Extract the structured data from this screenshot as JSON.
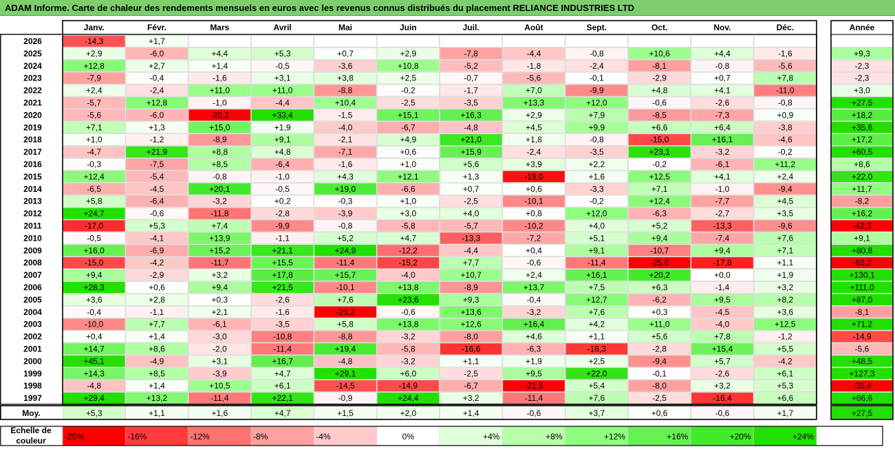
{
  "title": "ADAM Informe. Carte de chaleur des rendements mensuels en euros avec les revenus connus distribués du placement RELIANCE INDUSTRIES LTD",
  "chart_data": {
    "type": "heatmap",
    "months": [
      "Janv.",
      "Févr.",
      "Mars",
      "Avril",
      "Mai",
      "Juin",
      "Juil.",
      "Août",
      "Sept.",
      "Oct.",
      "Nov.",
      "Déc."
    ],
    "year_column_label": "Année",
    "average_row_label": "Moy.",
    "rows": [
      {
        "year": "2026",
        "values": [
          "-14,3",
          "+1,7",
          "",
          "",
          "",
          "",
          "",
          "",
          "",
          "",
          "",
          ""
        ],
        "annual": ""
      },
      {
        "year": "2025",
        "values": [
          "+2,9",
          "-6,0",
          "+4,4",
          "+5,3",
          "+0,7",
          "+2,9",
          "-7,8",
          "-4,4",
          "-0,8",
          "+10,6",
          "+4,4",
          "-1,6"
        ],
        "annual": "+9,3"
      },
      {
        "year": "2024",
        "values": [
          "+12,8",
          "+2,7",
          "+1,4",
          "-0,5",
          "-3,6",
          "+10,8",
          "-5,2",
          "-1,8",
          "-2,4",
          "-8,1",
          "-0,8",
          "-5,6"
        ],
        "annual": "-2,3"
      },
      {
        "year": "2023",
        "values": [
          "-7,9",
          "-0,4",
          "-1,6",
          "+3,1",
          "+3,8",
          "+2,5",
          "-0,7",
          "-5,6",
          "-0,1",
          "-2,9",
          "+0,7",
          "+7,8"
        ],
        "annual": "-2,3"
      },
      {
        "year": "2022",
        "values": [
          "+2,4",
          "-2,4",
          "+11,0",
          "+11,0",
          "-8,8",
          "-0,2",
          "-1,7",
          "+7,0",
          "-9,9",
          "+4,8",
          "+4,1",
          "-11,0"
        ],
        "annual": "+3,0"
      },
      {
        "year": "2021",
        "values": [
          "-5,7",
          "+12,8",
          "-1,0",
          "-4,4",
          "+10,4",
          "-2,5",
          "-3,5",
          "+13,3",
          "+12,0",
          "-0,6",
          "-2,6",
          "-0,8"
        ],
        "annual": "+27,5"
      },
      {
        "year": "2020",
        "values": [
          "-5,6",
          "-6,0",
          "-20,2",
          "+33,4",
          "-1,5",
          "+15,1",
          "+16,3",
          "+2,9",
          "+7,9",
          "-8,5",
          "-7,3",
          "+0,9"
        ],
        "annual": "+18,2"
      },
      {
        "year": "2019",
        "values": [
          "+7,1",
          "+1,3",
          "+15,0",
          "+1,9",
          "-4,0",
          "-6,7",
          "-4,8",
          "+4,5",
          "+9,9",
          "+6,6",
          "+6,4",
          "-3,8"
        ],
        "annual": "+35,6"
      },
      {
        "year": "2018",
        "values": [
          "+1,0",
          "-1,2",
          "-8,9",
          "+9,1",
          "-2,1",
          "+4,9",
          "+21,0",
          "+1,8",
          "-0,8",
          "-15,0",
          "+16,1",
          "-4,6"
        ],
        "annual": "+17,2"
      },
      {
        "year": "2017",
        "values": [
          "-4,7",
          "+21,9",
          "+8,8",
          "+4,8",
          "-7,1",
          "+0,6",
          "+15,9",
          "-2,4",
          "-3,5",
          "+23,1",
          "-3,2",
          "-0,2"
        ],
        "annual": "+60,5"
      },
      {
        "year": "2016",
        "values": [
          "-0,3",
          "-7,5",
          "+8,5",
          "-6,4",
          "-1,6",
          "+1,0",
          "+5,6",
          "+3,9",
          "+2,2",
          "-0,2",
          "-6,1",
          "+11,2"
        ],
        "annual": "+8,6"
      },
      {
        "year": "2015",
        "values": [
          "+12,4",
          "-5,4",
          "-0,8",
          "-1,0",
          "+4,3",
          "+12,1",
          "+1,3",
          "-19,0",
          "+1,6",
          "+12,5",
          "+4,1",
          "+2,4"
        ],
        "annual": "+22,0"
      },
      {
        "year": "2014",
        "values": [
          "-6,5",
          "-4,5",
          "+20,1",
          "-0,5",
          "+19,0",
          "-6,6",
          "+0,7",
          "+0,6",
          "-3,3",
          "+7,1",
          "-1,0",
          "-9,4"
        ],
        "annual": "+11,7"
      },
      {
        "year": "2013",
        "values": [
          "+5,8",
          "-6,4",
          "-3,2",
          "+0,2",
          "-0,3",
          "+1,0",
          "-2,5",
          "-10,1",
          "-0,2",
          "+12,4",
          "-7,7",
          "+4,5"
        ],
        "annual": "-8,2"
      },
      {
        "year": "2012",
        "values": [
          "+24,7",
          "-0,6",
          "-11,8",
          "-2,8",
          "-3,9",
          "+3,0",
          "+4,0",
          "+0,8",
          "+12,0",
          "-6,3",
          "-2,7",
          "+3,5"
        ],
        "annual": "+16,2"
      },
      {
        "year": "2011",
        "values": [
          "-17,0",
          "+5,3",
          "+7,4",
          "-9,9",
          "-0,8",
          "-5,8",
          "-5,7",
          "-10,2",
          "+4,0",
          "+5,2",
          "-13,3",
          "-9,6"
        ],
        "annual": "-42,3"
      },
      {
        "year": "2010",
        "values": [
          "-0,5",
          "-4,1",
          "+13,9",
          "-1,1",
          "+5,2",
          "+4,7",
          "-13,3",
          "-7,2",
          "+5,1",
          "+9,4",
          "-7,4",
          "+7,6"
        ],
        "annual": "+9,1"
      },
      {
        "year": "2009",
        "values": [
          "+16,0",
          "-6,9",
          "+15,2",
          "+21,1",
          "+24,9",
          "-12,2",
          "-4,4",
          "+0,4",
          "+9,1",
          "-10,7",
          "+9,4",
          "+7,1"
        ],
        "annual": "+80,8"
      },
      {
        "year": "2008",
        "values": [
          "-15,0",
          "-4,2",
          "-11,7",
          "+15,5",
          "-11,4",
          "-15,2",
          "+7,7",
          "-0,6",
          "-11,4",
          "-25,6",
          "-17,8",
          "+1,1"
        ],
        "annual": "-63,2"
      },
      {
        "year": "2007",
        "values": [
          "+9,4",
          "-2,9",
          "+3,2",
          "+17,8",
          "+15,7",
          "-4,0",
          "+10,7",
          "+2,4",
          "+16,1",
          "+20,2",
          "+0,0",
          "+1,9"
        ],
        "annual": "+130,1"
      },
      {
        "year": "2006",
        "values": [
          "+28,3",
          "+0,6",
          "+9,4",
          "+21,5",
          "-10,1",
          "+13,8",
          "-8,9",
          "+13,7",
          "+7,5",
          "+6,3",
          "-1,4",
          "+3,2"
        ],
        "annual": "+111,0"
      },
      {
        "year": "2005",
        "values": [
          "+3,6",
          "+2,8",
          "+0,3",
          "-2,6",
          "+7,6",
          "+23,6",
          "+9,3",
          "-0,4",
          "+12,7",
          "-6,2",
          "+9,5",
          "+8,2"
        ],
        "annual": "+87,0"
      },
      {
        "year": "2004",
        "values": [
          "-0,4",
          "-1,1",
          "+2,1",
          "-1,6",
          "-20,2",
          "-0,6",
          "+13,6",
          "-3,2",
          "+7,6",
          "+0,3",
          "-4,5",
          "+3,6"
        ],
        "annual": "-8,1"
      },
      {
        "year": "2003",
        "values": [
          "-10,0",
          "+7,7",
          "-6,1",
          "-3,5",
          "+5,8",
          "+13,8",
          "+12,6",
          "+16,4",
          "+4,2",
          "+11,0",
          "-4,0",
          "+12,5"
        ],
        "annual": "+71,2"
      },
      {
        "year": "2002",
        "values": [
          "+0,4",
          "+1,4",
          "-3,0",
          "-10,8",
          "-8,8",
          "-3,2",
          "-8,0",
          "+4,6",
          "+1,1",
          "+5,6",
          "+7,8",
          "-1,2"
        ],
        "annual": "-14,9"
      },
      {
        "year": "2001",
        "values": [
          "+14,7",
          "+8,6",
          "-2,0",
          "-11,4",
          "+19,4",
          "-5,8",
          "-16,6",
          "-6,3",
          "-16,3",
          "-2,8",
          "+15,4",
          "+5,5"
        ],
        "annual": "-5,6"
      },
      {
        "year": "2000",
        "values": [
          "+45,1",
          "-4,9",
          "+3,1",
          "+16,7",
          "-4,8",
          "-3,2",
          "+1,1",
          "+1,9",
          "+2,5",
          "-9,4",
          "+5,7",
          "-4,2"
        ],
        "annual": "+48,5"
      },
      {
        "year": "1999",
        "values": [
          "+14,3",
          "+8,5",
          "-3,9",
          "+4,7",
          "+29,1",
          "+6,0",
          "-2,5",
          "+9,5",
          "+22,0",
          "-0,1",
          "-2,6",
          "+6,1"
        ],
        "annual": "+127,3"
      },
      {
        "year": "1998",
        "values": [
          "-4,8",
          "+1,4",
          "+10,5",
          "+6,1",
          "-14,5",
          "-14,9",
          "-6,7",
          "-21,5",
          "+5,4",
          "-8,0",
          "+3,2",
          "+5,3"
        ],
        "annual": "-35,4"
      },
      {
        "year": "1997",
        "values": [
          "+29,4",
          "+13,2",
          "-11,4",
          "+22,1",
          "-0,9",
          "+24,4",
          "+3,2",
          "-11,4",
          "+7,6",
          "-2,5",
          "-16,4",
          "+6,6"
        ],
        "annual": "+66,6"
      }
    ],
    "average": {
      "values": [
        "+5,3",
        "+1,1",
        "+1,6",
        "+4,7",
        "+1,5",
        "+2,0",
        "+1,4",
        "-0,6",
        "+3,7",
        "+0,6",
        "-0,6",
        "+1,7"
      ],
      "annual": "+27,5"
    },
    "legend": {
      "label_line1": "Echelle de",
      "label_line2": "couleur",
      "entries": [
        {
          "label": "-20%",
          "color": "#ff0000"
        },
        {
          "label": "-16%",
          "color": "#ff3b3b"
        },
        {
          "label": "-12%",
          "color": "#ff7272"
        },
        {
          "label": "-8%",
          "color": "#ffa0a0"
        },
        {
          "label": "-4%",
          "color": "#ffcaca"
        },
        {
          "label": "0%",
          "color": "#ffffff"
        },
        {
          "label": "+4%",
          "color": "#e2ffdc"
        },
        {
          "label": "+8%",
          "color": "#b8ffac"
        },
        {
          "label": "+12%",
          "color": "#8ffd7e"
        },
        {
          "label": "+16%",
          "color": "#66f152"
        },
        {
          "label": "+20%",
          "color": "#44ea2c"
        },
        {
          "label": "+24%",
          "color": "#22e000"
        }
      ]
    }
  }
}
